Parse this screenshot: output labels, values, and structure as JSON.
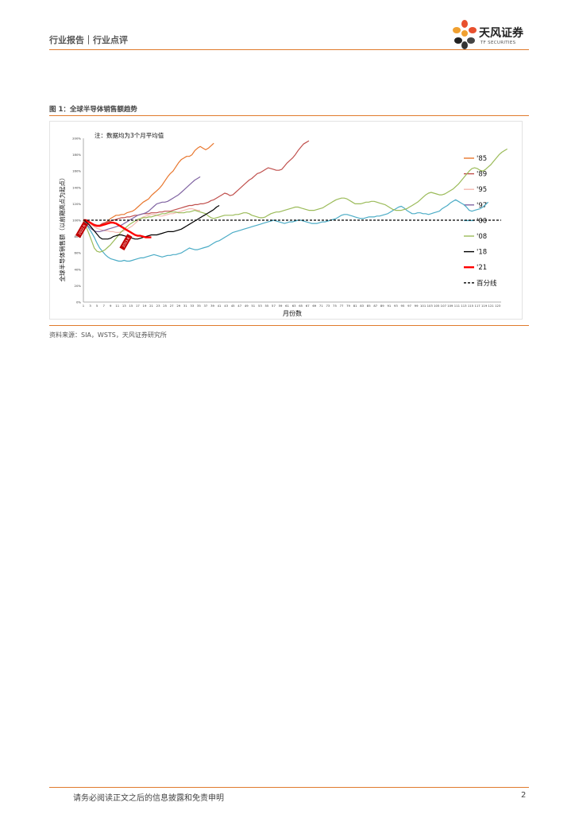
{
  "header": {
    "breadcrumb": "行业报告｜行业点评"
  },
  "logo": {
    "name": "天风证券",
    "sub": "TF SECURITIES"
  },
  "figure": {
    "title": "图 1：全球半导体销售额趋势",
    "source": "资料来源：SIA，WSTS，天风证券研究所"
  },
  "footer": {
    "disclaimer": "请务必阅读正文之后的信息披露和免责申明",
    "page": "2"
  },
  "chart_data": {
    "type": "line",
    "title": "",
    "annotation": "注：数据均为3个月平均值",
    "xlabel": "月份数",
    "ylabel": "全球半导体销售额（以前期高点为起点）",
    "ylim": [
      0,
      200
    ],
    "xlim": [
      1,
      124
    ],
    "y_ticks": [
      "0%",
      "20%",
      "40%",
      "60%",
      "80%",
      "100%",
      "120%",
      "140%",
      "160%",
      "180%",
      "200%"
    ],
    "x_ticks": [
      "1",
      "3",
      "5",
      "7",
      "9",
      "11",
      "13",
      "15",
      "17",
      "19",
      "21",
      "23",
      "25",
      "27",
      "29",
      "31",
      "33",
      "35",
      "37",
      "39",
      "41",
      "43",
      "45",
      "47",
      "49",
      "51",
      "53",
      "55",
      "57",
      "59",
      "61",
      "63",
      "65",
      "67",
      "69",
      "71",
      "73",
      "75",
      "77",
      "79",
      "81",
      "83",
      "85",
      "87",
      "89",
      "91",
      "93",
      "95",
      "97",
      "99",
      "101",
      "103",
      "105",
      "107",
      "109",
      "111",
      "113",
      "115",
      "117",
      "119",
      "121",
      "123"
    ],
    "callouts": [
      {
        "text": "2022.6",
        "series": "'21",
        "x": 1
      },
      {
        "text": "2023.6",
        "series": "'21",
        "x": 13
      }
    ],
    "series": [
      {
        "name": "'85",
        "color": "#e8762d",
        "x_start": 1,
        "values": [
          100,
          100,
          98,
          96,
          94,
          93,
          93,
          95,
          97,
          99,
          102,
          104,
          106,
          106,
          107,
          107,
          109,
          110,
          111,
          113,
          116,
          119,
          122,
          124,
          126,
          130,
          133,
          136,
          139,
          143,
          148,
          153,
          157,
          160,
          165,
          170,
          174,
          176,
          178,
          178,
          180,
          185,
          188,
          190,
          188,
          186,
          188,
          191,
          194
        ]
      },
      {
        "name": "'89",
        "color": "#c0504d",
        "x_start": 1,
        "values": [
          100,
          99,
          97,
          96,
          95,
          94,
          94,
          96,
          97,
          98,
          99,
          100,
          101,
          102,
          103,
          103,
          104,
          104,
          105,
          106,
          106,
          107,
          108,
          108,
          108,
          109,
          109,
          109,
          110,
          110,
          111,
          111,
          111,
          112,
          113,
          114,
          115,
          116,
          117,
          118,
          118,
          119,
          119,
          120,
          120,
          121,
          122,
          124,
          125,
          127,
          129,
          131,
          133,
          132,
          130,
          131,
          134,
          137,
          140,
          143,
          146,
          149,
          151,
          154,
          157,
          158,
          160,
          162,
          164,
          163,
          162,
          161,
          161,
          162,
          166,
          170,
          173,
          176,
          180,
          185,
          189,
          193,
          195,
          197
        ]
      },
      {
        "name": "'95",
        "color": "#f4b9b0",
        "x_start": 1,
        "values": [
          100,
          98,
          96,
          94,
          92,
          90,
          89,
          88,
          87,
          87,
          86,
          86,
          85,
          85,
          86,
          87,
          89,
          91,
          93,
          96,
          99,
          102,
          104,
          105,
          106,
          107,
          107,
          106,
          105,
          105,
          106,
          107,
          108,
          108,
          109,
          110,
          111,
          112,
          113,
          114,
          114,
          113,
          112,
          112
        ]
      },
      {
        "name": "'97",
        "color": "#8064a2",
        "x_start": 1,
        "values": [
          100,
          96,
          92,
          89,
          87,
          86,
          86,
          87,
          88,
          89,
          90,
          91,
          92,
          93,
          94,
          96,
          98,
          100,
          102,
          104,
          106,
          107,
          108,
          109,
          111,
          114,
          117,
          120,
          121,
          122,
          122,
          123,
          125,
          127,
          129,
          131,
          134,
          137,
          140,
          143,
          146,
          149,
          151,
          153
        ]
      },
      {
        "name": "'00",
        "color": "#4bacc6",
        "x_start": 1,
        "values": [
          100,
          96,
          90,
          85,
          79,
          72,
          66,
          62,
          58,
          55,
          53,
          52,
          51,
          50,
          50,
          51,
          50,
          50,
          51,
          52,
          53,
          54,
          54,
          55,
          56,
          57,
          58,
          57,
          56,
          55,
          56,
          57,
          57,
          58,
          58,
          59,
          60,
          62,
          64,
          66,
          65,
          64,
          64,
          65,
          66,
          67,
          68,
          70,
          72,
          74,
          75,
          77,
          79,
          81,
          83,
          85,
          86,
          87,
          88,
          89,
          90,
          91,
          92,
          93,
          94,
          95,
          96,
          97,
          98,
          99,
          100,
          99,
          98,
          97,
          96,
          97,
          98,
          98,
          99,
          100,
          100,
          99,
          98,
          97,
          96,
          96,
          96,
          97,
          98,
          98,
          99,
          100,
          101,
          102,
          104,
          106,
          107,
          107,
          106,
          105,
          104,
          103,
          102,
          102,
          103,
          104,
          104,
          104,
          105,
          105,
          106,
          107,
          108,
          110,
          112,
          114,
          116,
          117,
          115,
          112,
          110,
          108,
          108,
          109,
          109,
          108,
          108,
          107,
          108,
          109,
          110,
          111,
          114,
          116,
          118,
          121,
          123,
          125,
          123,
          121,
          119,
          116,
          112,
          111,
          112,
          113,
          114,
          116,
          119,
          122
        ]
      },
      {
        "name": "'08",
        "color": "#9bbb59",
        "x_start": 1,
        "values": [
          100,
          92,
          84,
          75,
          66,
          62,
          61,
          62,
          64,
          67,
          70,
          74,
          78,
          82,
          86,
          89,
          92,
          95,
          97,
          99,
          101,
          102,
          103,
          103,
          104,
          104,
          105,
          106,
          107,
          108,
          108,
          109,
          110,
          110,
          110,
          109,
          109,
          109,
          110,
          110,
          111,
          112,
          111,
          110,
          109,
          108,
          105,
          103,
          102,
          103,
          104,
          105,
          106,
          106,
          106,
          106,
          107,
          107,
          108,
          109,
          109,
          108,
          106,
          105,
          104,
          103,
          103,
          104,
          106,
          108,
          109,
          110,
          110,
          111,
          112,
          113,
          114,
          115,
          116,
          116,
          115,
          114,
          113,
          112,
          112,
          112,
          113,
          114,
          115,
          117,
          119,
          121,
          123,
          125,
          126,
          127,
          127,
          126,
          124,
          122,
          120,
          120,
          120,
          121,
          122,
          122,
          123,
          123,
          122,
          121,
          120,
          119,
          117,
          115,
          113,
          112,
          112,
          112,
          113,
          114,
          116,
          118,
          120,
          122,
          125,
          128,
          131,
          133,
          134,
          133,
          132,
          131,
          131,
          132,
          134,
          136,
          138,
          141,
          144,
          148,
          152,
          156,
          160,
          163,
          164,
          163,
          161,
          160,
          162,
          165,
          168,
          172,
          176,
          180,
          183,
          185,
          187
        ]
      },
      {
        "name": "'18",
        "color": "#000000",
        "x_start": 1,
        "values": [
          100,
          98,
          95,
          91,
          87,
          83,
          79,
          77,
          77,
          77,
          78,
          80,
          81,
          82,
          82,
          81,
          80,
          79,
          78,
          77,
          77,
          78,
          79,
          80,
          81,
          82,
          82,
          82,
          83,
          84,
          85,
          86,
          86,
          86,
          87,
          88,
          89,
          91,
          93,
          95,
          97,
          99,
          101,
          103,
          105,
          107,
          109,
          111,
          113,
          116,
          118
        ]
      },
      {
        "name": "'21",
        "color": "#ff0000",
        "x_start": 1,
        "values": [
          100,
          100,
          98,
          96,
          94,
          93,
          93,
          94,
          95,
          96,
          97,
          97,
          96,
          94,
          92,
          90,
          88,
          86,
          84,
          82,
          81,
          81,
          80,
          79,
          79,
          79
        ]
      },
      {
        "name": "百分线",
        "color": "#000000",
        "dashed": true,
        "x_start": 1,
        "constant": 100
      }
    ],
    "legend": {
      "placement": "right"
    }
  }
}
